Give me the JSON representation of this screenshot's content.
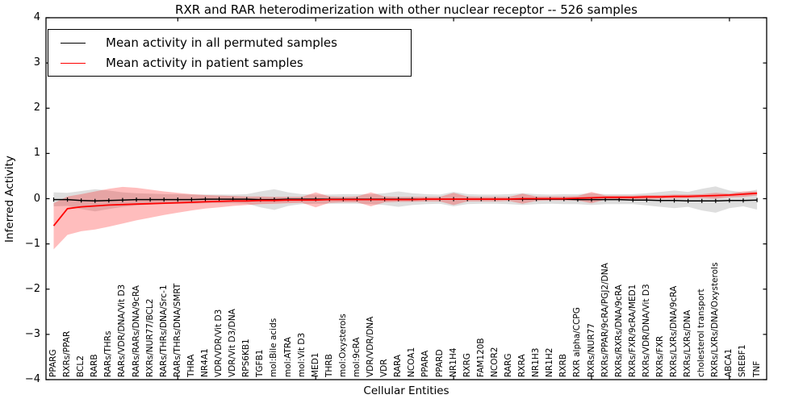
{
  "chart_data": {
    "type": "line",
    "title": "RXR and RAR heterodimerization with other nuclear receptor -- 526 samples",
    "xlabel": "Cellular Entities",
    "ylabel": "Inferred Activity",
    "ylim": [
      -4,
      4
    ],
    "yticks": [
      4,
      3,
      2,
      1,
      0,
      -1,
      -2,
      -3,
      -4
    ],
    "xticks": [
      10,
      20,
      30,
      40,
      50
    ],
    "grid": false,
    "legend_position": "upper left",
    "sample_count": "526 samples",
    "categories": [
      "PPARG",
      "RXRs/PPAR",
      "BCL2",
      "RARB",
      "RARs/THRs",
      "RARs/VDR/DNA/Vit D3",
      "RARs/RARs/DNA/9cRA",
      "RXRs/NUR77/BCL2",
      "RARs/THRs/DNA/Src-1",
      "RARs/THRs/DNA/SMRT",
      "THRA",
      "NR4A1",
      "VDR/VDR/Vit D3",
      "VDR/Vit D3/DNA",
      "RPS6KB1",
      "TGFB1",
      "mol:Bile acids",
      "mol:ATRA",
      "mol:Vit D3",
      "MED1",
      "THRB",
      "mol:Oxysterols",
      "mol:9cRA",
      "VDR/VDR/DNA",
      "VDR",
      "RARA",
      "NCOA1",
      "PPARA",
      "PPARD",
      "NR1H4",
      "RXRG",
      "FAM120B",
      "NCOR2",
      "RARG",
      "RXRA",
      "NR1H3",
      "NR1H2",
      "RXRB",
      "RXR alpha/CCPG",
      "RXRs/NUR77",
      "RXRs/PPAR/9cRA/PGJ2/DNA",
      "RXRs/RXRs/DNA/9cRA",
      "RXRs/FXR/9cRA/MED1",
      "RXRs/VDR/DNA/Vit D3",
      "RXRs/FXR",
      "RXRs/LXRs/DNA/9cRA",
      "RXRs/LXRs/DNA",
      "cholesterol transport",
      "RXRs/LXRs/DNA/Oxysterols",
      "ABCA1",
      "SREBF1",
      "TNF"
    ],
    "series": [
      {
        "name": "Mean activity in all permuted samples",
        "color": "#000000",
        "band_color": "rgba(0,0,0,0.13)",
        "marker": "|",
        "values": [
          -0.02,
          -0.02,
          -0.04,
          -0.05,
          -0.04,
          -0.03,
          -0.02,
          -0.02,
          -0.02,
          -0.02,
          -0.02,
          -0.01,
          -0.01,
          -0.01,
          -0.01,
          -0.02,
          -0.02,
          -0.01,
          -0.01,
          -0.01,
          -0.01,
          -0.01,
          -0.01,
          -0.01,
          -0.01,
          -0.01,
          -0.01,
          -0.01,
          -0.01,
          -0.01,
          -0.01,
          -0.01,
          -0.01,
          -0.01,
          -0.01,
          -0.01,
          -0.01,
          -0.01,
          -0.02,
          -0.02,
          -0.02,
          -0.02,
          -0.03,
          -0.03,
          -0.04,
          -0.04,
          -0.05,
          -0.05,
          -0.05,
          -0.04,
          -0.04,
          -0.03
        ],
        "band_upper": [
          0.14,
          0.13,
          0.17,
          0.21,
          0.18,
          0.14,
          0.12,
          0.11,
          0.1,
          0.1,
          0.09,
          0.09,
          0.09,
          0.09,
          0.1,
          0.16,
          0.21,
          0.14,
          0.1,
          0.09,
          0.09,
          0.1,
          0.1,
          0.1,
          0.12,
          0.16,
          0.12,
          0.1,
          0.09,
          0.15,
          0.1,
          0.09,
          0.09,
          0.1,
          0.12,
          0.1,
          0.09,
          0.1,
          0.1,
          0.12,
          0.1,
          0.1,
          0.1,
          0.12,
          0.15,
          0.18,
          0.15,
          0.22,
          0.27,
          0.18,
          0.14,
          0.2
        ],
        "band_lower": [
          -0.17,
          -0.16,
          -0.23,
          -0.28,
          -0.23,
          -0.18,
          -0.15,
          -0.13,
          -0.12,
          -0.11,
          -0.11,
          -0.1,
          -0.1,
          -0.1,
          -0.11,
          -0.19,
          -0.25,
          -0.16,
          -0.12,
          -0.11,
          -0.11,
          -0.11,
          -0.11,
          -0.12,
          -0.14,
          -0.18,
          -0.14,
          -0.12,
          -0.11,
          -0.17,
          -0.12,
          -0.11,
          -0.11,
          -0.12,
          -0.14,
          -0.12,
          -0.11,
          -0.12,
          -0.12,
          -0.14,
          -0.12,
          -0.12,
          -0.12,
          -0.15,
          -0.18,
          -0.21,
          -0.18,
          -0.26,
          -0.31,
          -0.21,
          -0.17,
          -0.24
        ]
      },
      {
        "name": "Mean activity in patient samples",
        "color": "#ff0000",
        "band_color": "rgba(255,0,0,0.26)",
        "marker": null,
        "values": [
          -0.6,
          -0.22,
          -0.18,
          -0.16,
          -0.14,
          -0.13,
          -0.12,
          -0.11,
          -0.1,
          -0.09,
          -0.08,
          -0.07,
          -0.06,
          -0.05,
          -0.05,
          -0.04,
          -0.04,
          -0.03,
          -0.03,
          -0.03,
          -0.02,
          -0.02,
          -0.02,
          -0.02,
          -0.02,
          -0.02,
          -0.02,
          -0.01,
          -0.01,
          -0.01,
          -0.01,
          -0.01,
          -0.01,
          -0.01,
          0.0,
          0.0,
          0.0,
          0.0,
          0.01,
          0.02,
          0.03,
          0.03,
          0.03,
          0.04,
          0.04,
          0.05,
          0.05,
          0.06,
          0.07,
          0.08,
          0.1,
          0.12
        ],
        "band_upper": [
          -0.1,
          0.05,
          0.1,
          0.16,
          0.22,
          0.26,
          0.24,
          0.2,
          0.16,
          0.13,
          0.1,
          0.08,
          0.07,
          0.06,
          0.05,
          0.05,
          0.04,
          0.04,
          0.04,
          0.14,
          0.05,
          0.04,
          0.05,
          0.14,
          0.05,
          0.04,
          0.04,
          0.04,
          0.04,
          0.13,
          0.05,
          0.04,
          0.04,
          0.04,
          0.11,
          0.05,
          0.05,
          0.05,
          0.06,
          0.15,
          0.07,
          0.07,
          0.07,
          0.08,
          0.08,
          0.09,
          0.09,
          0.1,
          0.13,
          0.11,
          0.16,
          0.16
        ],
        "band_lower": [
          -1.12,
          -0.8,
          -0.72,
          -0.68,
          -0.62,
          -0.55,
          -0.48,
          -0.42,
          -0.36,
          -0.31,
          -0.26,
          -0.22,
          -0.19,
          -0.16,
          -0.14,
          -0.12,
          -0.11,
          -0.1,
          -0.09,
          -0.19,
          -0.09,
          -0.08,
          -0.08,
          -0.17,
          -0.08,
          -0.07,
          -0.07,
          -0.06,
          -0.06,
          -0.14,
          -0.06,
          -0.06,
          -0.06,
          -0.05,
          -0.11,
          -0.05,
          -0.04,
          -0.04,
          -0.04,
          -0.1,
          -0.02,
          -0.02,
          -0.01,
          -0.01,
          0.0,
          0.0,
          0.01,
          0.01,
          0.0,
          0.03,
          0.04,
          0.07
        ]
      }
    ]
  }
}
